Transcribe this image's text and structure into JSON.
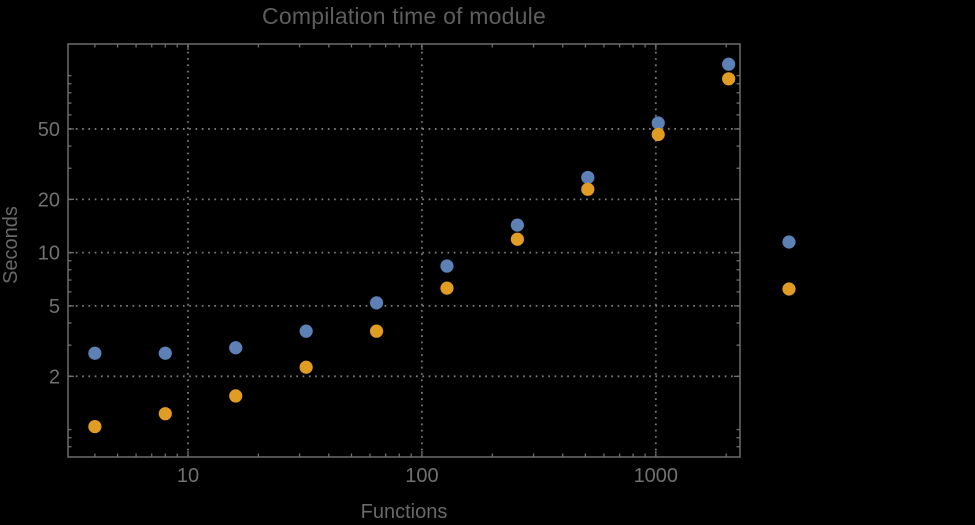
{
  "colors": {
    "background": "#000000",
    "frame": "#6e6e6e",
    "grid": "#7a7a7a",
    "tick": "#6e6e6e",
    "tick_label": "#717171",
    "title": "#5e5e5e",
    "axis_label": "#696969",
    "series_blue": "#5e81b5",
    "series_orange": "#e19c24"
  },
  "chart_data": {
    "type": "scatter",
    "title": "Compilation time of module",
    "xlabel": "Functions",
    "ylabel": "Seconds",
    "xscale": "log",
    "yscale": "log",
    "xlim": [
      3.07,
      2290
    ],
    "ylim": [
      0.7,
      151
    ],
    "grid": {
      "style": "dotted",
      "x_lines": [
        10,
        100,
        1000
      ],
      "y_lines": [
        2,
        5,
        10,
        20,
        50
      ]
    },
    "x_ticks": {
      "major": [
        10,
        100,
        1000
      ],
      "major_labels": [
        "10",
        "100",
        "1000"
      ],
      "minor": [
        4,
        5,
        6,
        7,
        8,
        9,
        20,
        30,
        40,
        50,
        60,
        70,
        80,
        90,
        200,
        300,
        400,
        500,
        600,
        700,
        800,
        900,
        2000
      ]
    },
    "y_ticks": {
      "major": [
        2,
        5,
        10,
        20,
        50
      ],
      "major_labels": [
        "2",
        "5",
        "10",
        "20",
        "50"
      ],
      "minor": [
        0.8,
        0.9,
        1,
        3,
        4,
        6,
        7,
        8,
        9,
        30,
        40,
        60,
        70,
        80,
        90,
        100
      ]
    },
    "series": [
      {
        "name": "series_1",
        "color": "#5e81b5",
        "marker": "circle",
        "x": [
          4,
          8,
          16,
          32,
          64,
          128,
          256,
          512,
          1024,
          2048
        ],
        "y": [
          2.7,
          2.7,
          2.9,
          3.6,
          5.2,
          8.4,
          14.3,
          26.6,
          54,
          116
        ]
      },
      {
        "name": "series_2",
        "color": "#e19c24",
        "marker": "circle",
        "x": [
          4,
          8,
          16,
          32,
          64,
          128,
          256,
          512,
          1024,
          2048
        ],
        "y": [
          1.04,
          1.23,
          1.55,
          2.25,
          3.6,
          6.3,
          11.9,
          22.8,
          46.5,
          96
        ]
      }
    ],
    "legend": {
      "position": "right-of-frame",
      "labels_visible": false,
      "markers": [
        {
          "series": "series_1",
          "color": "#5e81b5"
        },
        {
          "series": "series_2",
          "color": "#e19c24"
        }
      ]
    }
  }
}
